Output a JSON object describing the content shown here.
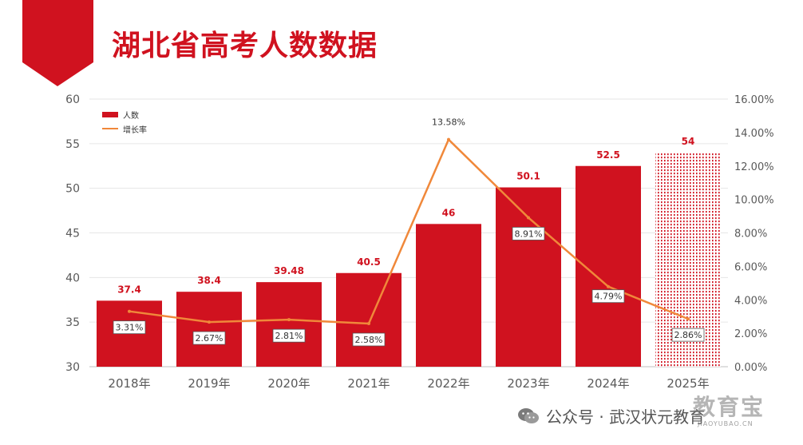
{
  "title": "湖北省高考人数数据",
  "colors": {
    "title": "#d0121f",
    "bar": "#d0121f",
    "line": "#f0883a",
    "label": "#d0121f",
    "grid": "#e6e6e6",
    "axis_text": "#595959"
  },
  "legend": {
    "bar_label": "人数",
    "line_label": "增长率",
    "placement": "top-left"
  },
  "watermark": {
    "text": "公众号 · 武汉状元教育",
    "icon": "wechat-icon",
    "logo_text": "教育宝",
    "logo_domain": "JIAOYUBAO.CN"
  },
  "chart_data": {
    "type": "bar",
    "categories": [
      "2018年",
      "2019年",
      "2020年",
      "2021年",
      "2022年",
      "2023年",
      "2024年",
      "2025年"
    ],
    "series": [
      {
        "name": "人数",
        "type": "bar",
        "axis": "left",
        "values": [
          37.4,
          38.4,
          39.48,
          40.5,
          46,
          50.1,
          52.5,
          54
        ],
        "labels": [
          "37.4",
          "38.4",
          "39.48",
          "40.5",
          "46",
          "50.1",
          "52.5",
          "54"
        ],
        "projected_index": 7
      },
      {
        "name": "增长率",
        "type": "line",
        "axis": "right",
        "values": [
          3.31,
          2.67,
          2.81,
          2.58,
          13.58,
          8.91,
          4.79,
          2.86
        ],
        "labels": [
          "3.31%",
          "2.67%",
          "2.81%",
          "2.58%",
          "13.58%",
          "8.91%",
          "4.79%",
          "2.86%"
        ]
      }
    ],
    "y_left": {
      "min": 30,
      "max": 60,
      "ticks": [
        "30",
        "35",
        "40",
        "45",
        "50",
        "55",
        "60"
      ]
    },
    "y_right": {
      "min": 0,
      "max": 16,
      "ticks": [
        "0.00%",
        "2.00%",
        "4.00%",
        "6.00%",
        "8.00%",
        "10.00%",
        "12.00%",
        "14.00%",
        "16.00%"
      ]
    },
    "grid": true
  }
}
